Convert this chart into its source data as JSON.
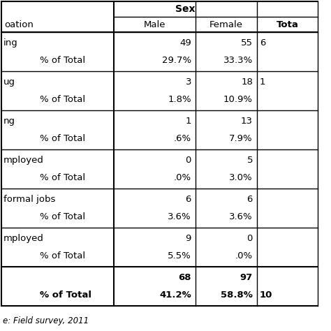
{
  "source_note": "e: Field survey, 2011",
  "rows": [
    {
      "label1": "ing",
      "label2": "% of Total",
      "male_count": "49",
      "female_count": "55",
      "male_pct": "29.7%",
      "female_pct": "33.3%",
      "total_count": "",
      "total_pct": "6"
    },
    {
      "label1": "ug",
      "label2": "% of Total",
      "male_count": "3",
      "female_count": "18",
      "male_pct": "1.8%",
      "female_pct": "10.9%",
      "total_count": "",
      "total_pct": "1"
    },
    {
      "label1": "ng",
      "label2": "% of Total",
      "male_count": "1",
      "female_count": "13",
      "male_pct": ".6%",
      "female_pct": "7.9%",
      "total_count": "",
      "total_pct": ""
    },
    {
      "label1": "mployed",
      "label2": "% of Total",
      "male_count": "0",
      "female_count": "5",
      "male_pct": ".0%",
      "female_pct": "3.0%",
      "total_count": "",
      "total_pct": ""
    },
    {
      "label1": "formal jobs",
      "label2": "% of Total",
      "male_count": "6",
      "female_count": "6",
      "male_pct": "3.6%",
      "female_pct": "3.6%",
      "total_count": "",
      "total_pct": ""
    },
    {
      "label1": "mployed",
      "label2": "% of Total",
      "male_count": "9",
      "female_count": "0",
      "male_pct": "5.5%",
      "female_pct": ".0%",
      "total_count": "",
      "total_pct": ""
    }
  ],
  "total_row": {
    "male_count": "68",
    "female_count": "97",
    "male_pct": "41.2%",
    "female_pct": "58.8%",
    "total_pct": "10"
  },
  "bg_color": "#ffffff",
  "line_color": "#000000",
  "font_size": 9.5,
  "bold_font_size": 9.5
}
